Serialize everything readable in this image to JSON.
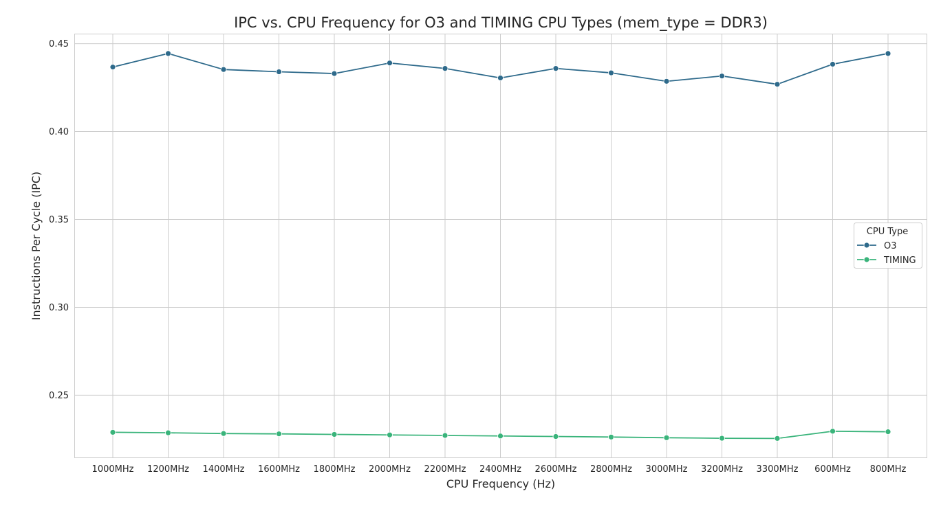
{
  "chart_data": {
    "type": "line",
    "title": "IPC vs. CPU Frequency for O3 and TIMING CPU Types (mem_type = DDR3)",
    "xlabel": "CPU Frequency (Hz)",
    "ylabel": "Instructions Per Cycle (IPC)",
    "categories": [
      "1000MHz",
      "1200MHz",
      "1400MHz",
      "1600MHz",
      "1800MHz",
      "2000MHz",
      "2200MHz",
      "2400MHz",
      "2600MHz",
      "2800MHz",
      "3000MHz",
      "3200MHz",
      "3300MHz",
      "600MHz",
      "800MHz"
    ],
    "ylim": [
      0.2144,
      0.4555
    ],
    "yticks": [
      0.25,
      0.3,
      0.35,
      0.4,
      0.45
    ],
    "ytick_labels": [
      "0.25",
      "0.30",
      "0.35",
      "0.40",
      "0.45"
    ],
    "grid": true,
    "legend": {
      "title": "CPU Type",
      "position": "center-right"
    },
    "series": [
      {
        "name": "O3",
        "color": "#2e6a8b",
        "values": [
          0.4367,
          0.4444,
          0.4353,
          0.434,
          0.433,
          0.439,
          0.4359,
          0.4305,
          0.4359,
          0.4334,
          0.4286,
          0.4316,
          0.4269,
          0.4383,
          0.4444
        ]
      },
      {
        "name": "TIMING",
        "color": "#3ab47b",
        "values": [
          0.2289,
          0.2286,
          0.2282,
          0.228,
          0.2277,
          0.2274,
          0.2271,
          0.2268,
          0.2265,
          0.2262,
          0.2258,
          0.2255,
          0.2254,
          0.2295,
          0.2292
        ]
      }
    ]
  }
}
